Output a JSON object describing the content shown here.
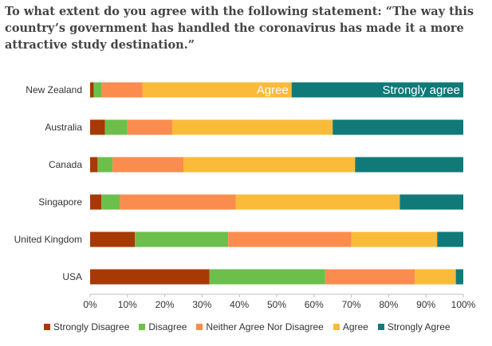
{
  "title": "To what extent do you agree with the following statement: “The way this country’s government has handled the coronavirus has made it a more attractive study destination.”",
  "chart_data": {
    "type": "bar",
    "orientation": "horizontal",
    "stacked": true,
    "categories": [
      "New Zealand",
      "Australia",
      "Canada",
      "Singapore",
      "United Kingdom",
      "USA"
    ],
    "series": [
      {
        "name": "Strongly Disagree",
        "color": "#a63a05",
        "values": [
          1,
          4,
          2,
          3,
          12,
          32
        ]
      },
      {
        "name": "Disagree",
        "color": "#6dbf4b",
        "values": [
          2,
          6,
          4,
          5,
          25,
          31
        ]
      },
      {
        "name": "Neither Agree Nor Disagree",
        "color": "#fb8c50",
        "values": [
          11,
          12,
          19,
          31,
          33,
          24
        ]
      },
      {
        "name": "Agree",
        "color": "#fbbb3a",
        "values": [
          40,
          43,
          46,
          44,
          23,
          11
        ]
      },
      {
        "name": "Strongly Agree",
        "color": "#117a79",
        "values": [
          46,
          35,
          29,
          17,
          7,
          2
        ]
      }
    ],
    "xlim": [
      0,
      100
    ],
    "xticks": [
      "0%",
      "10%",
      "20%",
      "30%",
      "40%",
      "50%",
      "60%",
      "70%",
      "80%",
      "90%",
      "100%"
    ],
    "annotations": [
      {
        "category": "New Zealand",
        "series": "Agree",
        "text": "Agree"
      },
      {
        "category": "New Zealand",
        "series": "Strongly Agree",
        "text": "Strongly agree"
      }
    ],
    "legend": "bottom",
    "grid": false
  }
}
